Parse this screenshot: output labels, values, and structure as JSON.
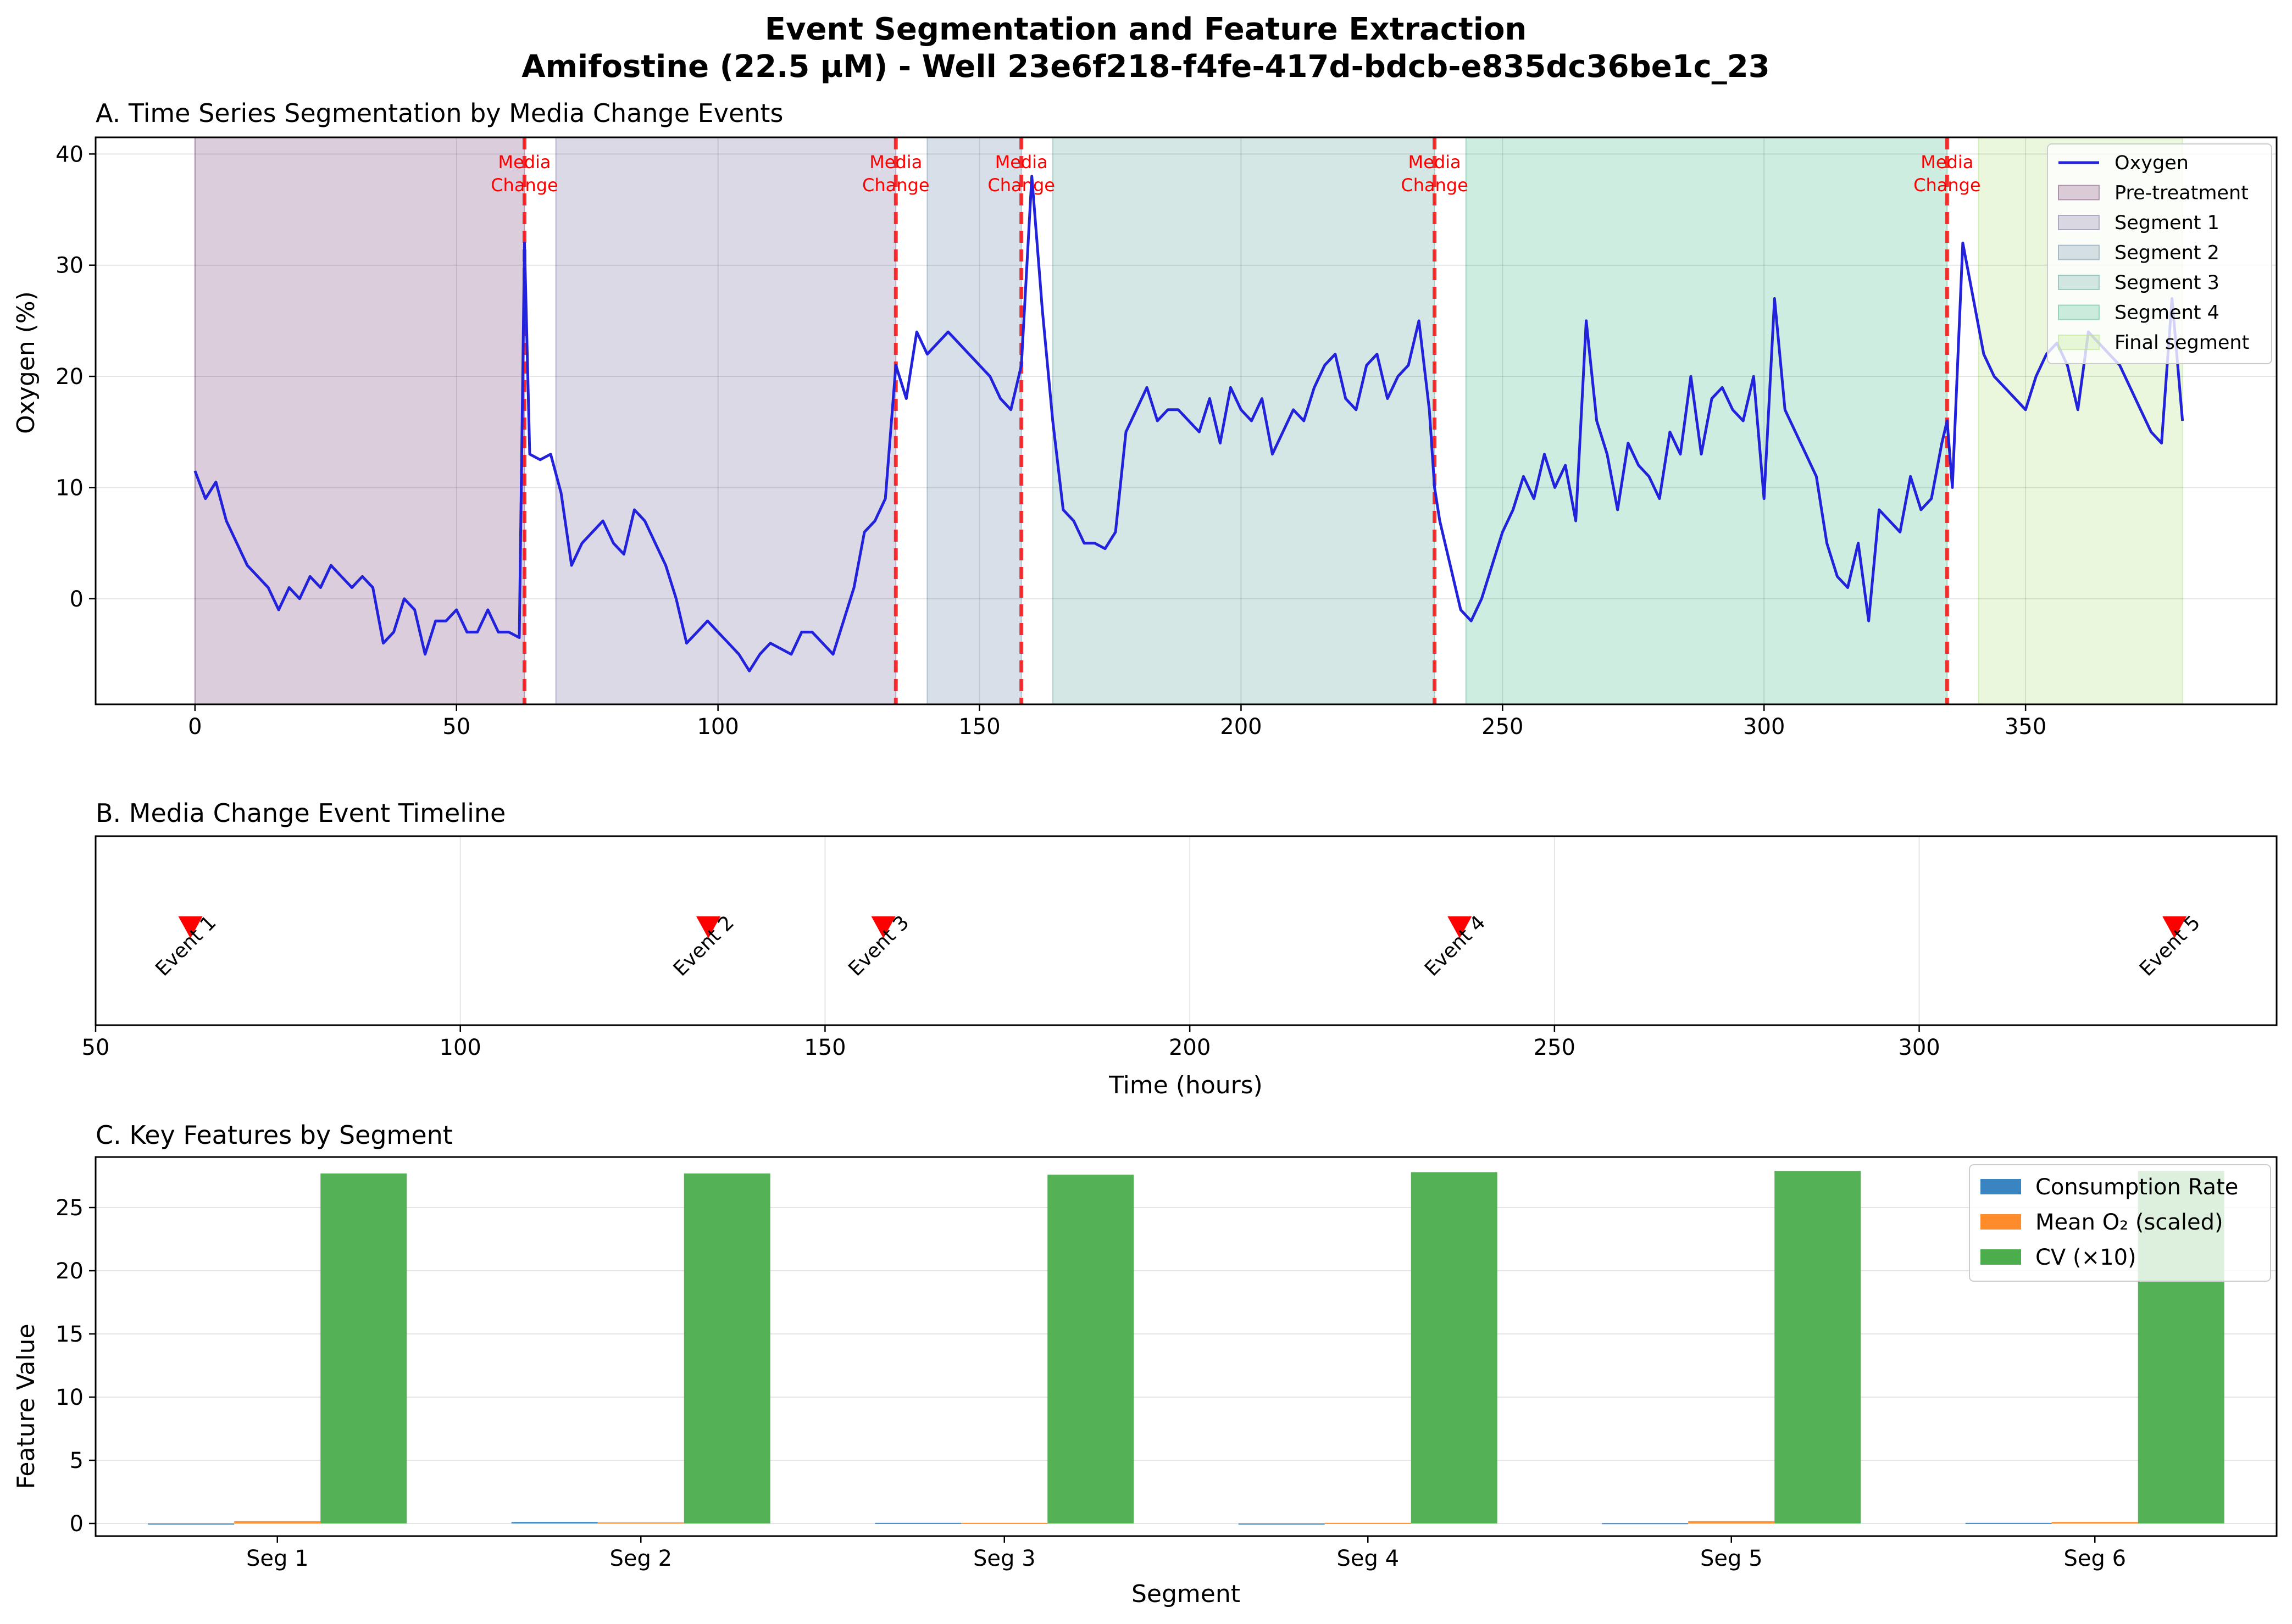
{
  "title_line1": "Event Segmentation and Feature Extraction",
  "title_line2": "Amifostine (22.5 µM) - Well 23e6f218-f4fe-417d-bdcb-e835dc36be1c_23",
  "chart_data": [
    {
      "type": "line",
      "title": "A. Time Series Segmentation by Media Change Events",
      "xlabel": "",
      "ylabel": "Oxygen (%)",
      "xlim": [
        -19,
        398
      ],
      "ylim": [
        -9.5,
        41.5
      ],
      "xticks": [
        0,
        50,
        100,
        150,
        200,
        250,
        300,
        350
      ],
      "yticks": [
        0,
        10,
        20,
        30,
        40
      ],
      "grid": true,
      "legend_position": "top-right",
      "series": [
        {
          "name": "Oxygen",
          "color": "#2222dd",
          "x": [
            0,
            2,
            4,
            6,
            8,
            10,
            12,
            14,
            16,
            18,
            20,
            22,
            24,
            26,
            28,
            30,
            32,
            34,
            36,
            38,
            40,
            42,
            44,
            46,
            48,
            50,
            52,
            54,
            56,
            58,
            60,
            62,
            63,
            64,
            66,
            68,
            70,
            72,
            74,
            76,
            78,
            80,
            82,
            84,
            86,
            88,
            90,
            92,
            94,
            96,
            98,
            100,
            102,
            104,
            106,
            108,
            110,
            112,
            114,
            116,
            118,
            120,
            122,
            124,
            126,
            128,
            130,
            132,
            134,
            136,
            138,
            140,
            142,
            144,
            146,
            148,
            150,
            152,
            154,
            156,
            158,
            160,
            162,
            164,
            166,
            168,
            170,
            172,
            174,
            176,
            178,
            180,
            182,
            184,
            186,
            188,
            190,
            192,
            194,
            196,
            198,
            200,
            202,
            204,
            206,
            208,
            210,
            212,
            214,
            216,
            218,
            220,
            222,
            224,
            226,
            228,
            230,
            232,
            234,
            236,
            237,
            238,
            240,
            242,
            244,
            246,
            248,
            250,
            252,
            254,
            256,
            258,
            260,
            262,
            264,
            266,
            268,
            270,
            272,
            274,
            276,
            278,
            280,
            282,
            284,
            286,
            288,
            290,
            292,
            294,
            296,
            298,
            300,
            302,
            304,
            306,
            308,
            310,
            312,
            314,
            316,
            318,
            320,
            322,
            324,
            326,
            328,
            330,
            332,
            334,
            335,
            336,
            338,
            340,
            342,
            344,
            346,
            348,
            350,
            352,
            354,
            356,
            358,
            360,
            362,
            364,
            366,
            368,
            370,
            372,
            374,
            376,
            378,
            380
          ],
          "y": [
            11.5,
            9,
            10.5,
            7,
            5,
            3,
            2,
            1,
            -1,
            1,
            0,
            2,
            1,
            3,
            2,
            1,
            2,
            1,
            -4,
            -3,
            0,
            -1,
            -5,
            -2,
            -2,
            -1,
            -3,
            -3,
            -1,
            -3,
            -3,
            -3.5,
            32,
            13,
            12.5,
            13,
            9.5,
            3,
            5,
            6,
            7,
            5,
            4,
            8,
            7,
            5,
            3,
            0,
            -4,
            -3,
            -2,
            -3,
            -4,
            -5,
            -6.5,
            -5,
            -4,
            -4.5,
            -5,
            -3,
            -3,
            -4,
            -5,
            -2,
            1,
            6,
            7,
            9,
            21,
            18,
            24,
            22,
            23,
            24,
            23,
            22,
            21,
            20,
            18,
            17,
            21,
            38,
            26,
            16,
            8,
            7,
            5,
            5,
            4.5,
            6,
            15,
            17,
            19,
            16,
            17,
            17,
            16,
            15,
            18,
            14,
            19,
            17,
            16,
            18,
            13,
            15,
            17,
            16,
            19,
            21,
            22,
            18,
            17,
            21,
            22,
            18,
            20,
            21,
            25,
            17,
            10,
            7,
            3,
            -1,
            -2,
            0,
            3,
            6,
            8,
            11,
            9,
            13,
            10,
            12,
            7,
            25,
            16,
            13,
            8,
            14,
            12,
            11,
            9,
            15,
            13,
            20,
            13,
            18,
            19,
            17,
            16,
            20,
            9,
            27,
            17,
            15,
            13,
            11,
            5,
            2,
            1,
            5,
            -2,
            8,
            7,
            6,
            11,
            8,
            9,
            14,
            16,
            10,
            32,
            27,
            22,
            20,
            19,
            18,
            17,
            20,
            22,
            23,
            21,
            17,
            24,
            23,
            22,
            21,
            19,
            17,
            15,
            14,
            27,
            16
          ]
        }
      ],
      "segments": [
        {
          "name": "Pre-treatment",
          "start": 0,
          "end": 63,
          "color": "#8b5a8b"
        },
        {
          "name": "Segment 1",
          "start": 69,
          "end": 134,
          "color": "#8a80b0"
        },
        {
          "name": "Segment 2",
          "start": 140,
          "end": 158,
          "color": "#7c99b3"
        },
        {
          "name": "Segment 3",
          "start": 164,
          "end": 237,
          "color": "#6fb0a8"
        },
        {
          "name": "Segment 4",
          "start": 243,
          "end": 335,
          "color": "#5cc49a"
        },
        {
          "name": "Final segment",
          "start": 341,
          "end": 380,
          "color": "#b8e68a"
        }
      ],
      "media_changes": [
        63,
        134,
        158,
        237,
        335
      ],
      "media_change_label_line1": "Media",
      "media_change_label_line2": "Change",
      "media_change_color": "#ff0000"
    },
    {
      "type": "scatter",
      "title": "B. Media Change Event Timeline",
      "xlabel": "Time (hours)",
      "xlim": [
        50,
        349
      ],
      "xticks": [
        50,
        100,
        150,
        200,
        250,
        300
      ],
      "grid": true,
      "marker": "triangle-down",
      "color": "#ff0000",
      "events": [
        {
          "label": "Event 1",
          "x": 63
        },
        {
          "label": "Event 2",
          "x": 134
        },
        {
          "label": "Event 3",
          "x": 158
        },
        {
          "label": "Event 4",
          "x": 237
        },
        {
          "label": "Event 5",
          "x": 335
        }
      ]
    },
    {
      "type": "bar",
      "title": "C. Key Features by Segment",
      "xlabel": "Segment",
      "ylabel": "Feature Value",
      "ylim": [
        -1,
        29
      ],
      "yticks": [
        0,
        5,
        10,
        15,
        20,
        25
      ],
      "grid": true,
      "legend_position": "top-right",
      "categories": [
        "Seg 1",
        "Seg 2",
        "Seg 3",
        "Seg 4",
        "Seg 5",
        "Seg 6"
      ],
      "series": [
        {
          "name": "Consumption Rate",
          "color": "#3a84c1",
          "values": [
            0.0,
            0.12,
            0.05,
            -0.08,
            0.03,
            0.05
          ]
        },
        {
          "name": "Mean O₂ (scaled)",
          "color": "#ff8c2a",
          "values": [
            0.18,
            0.08,
            0.05,
            0.05,
            0.18,
            0.12
          ]
        },
        {
          "name": "CV (×10)",
          "color": "#4cad4c",
          "values": [
            27.7,
            27.7,
            27.6,
            27.8,
            27.9,
            27.9
          ]
        }
      ]
    }
  ]
}
